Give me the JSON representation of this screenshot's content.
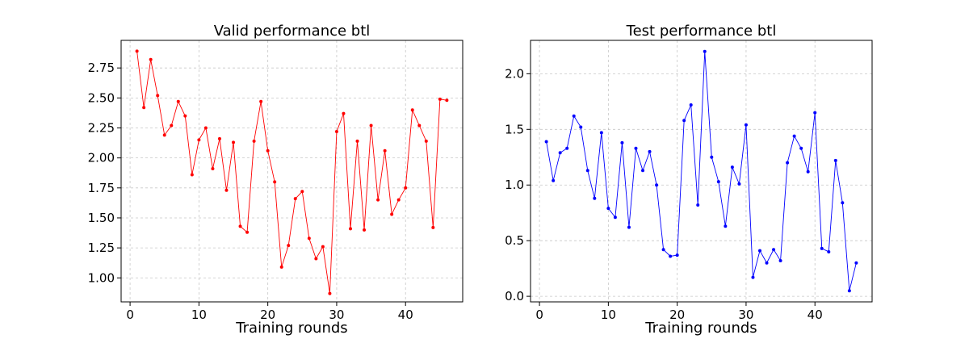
{
  "chart_data": [
    {
      "type": "line",
      "title": "Valid performance btl",
      "xlabel": "Training rounds",
      "ylabel": "",
      "color": "#ff0000",
      "grid": true,
      "xlim": [
        -1.3,
        48.3
      ],
      "ylim": [
        0.8,
        2.98
      ],
      "xticks": [
        0,
        10,
        20,
        30,
        40
      ],
      "yticks": [
        1.0,
        1.25,
        1.5,
        1.75,
        2.0,
        2.25,
        2.5,
        2.75
      ],
      "ytick_labels": [
        "1.00",
        "1.25",
        "1.50",
        "1.75",
        "2.00",
        "2.25",
        "2.50",
        "2.75"
      ],
      "x": [
        1,
        2,
        3,
        4,
        5,
        6,
        7,
        8,
        9,
        10,
        11,
        12,
        13,
        14,
        15,
        16,
        17,
        18,
        19,
        20,
        21,
        22,
        23,
        24,
        25,
        26,
        27,
        28,
        29,
        30,
        31,
        32,
        33,
        34,
        35,
        36,
        37,
        38,
        39,
        40,
        41,
        42,
        43,
        44,
        45,
        46
      ],
      "y": [
        2.89,
        2.42,
        2.82,
        2.52,
        2.19,
        2.27,
        2.47,
        2.35,
        1.86,
        2.15,
        2.25,
        1.91,
        2.16,
        1.73,
        2.13,
        1.43,
        1.38,
        2.14,
        2.47,
        2.06,
        1.8,
        1.09,
        1.27,
        1.66,
        1.72,
        1.33,
        1.16,
        1.26,
        0.87,
        2.22,
        2.37,
        1.41,
        2.14,
        1.4,
        2.27,
        1.65,
        2.06,
        1.53,
        1.65,
        1.75,
        2.4,
        2.27,
        2.14,
        1.42,
        2.49,
        2.48
      ]
    },
    {
      "type": "line",
      "title": "Test performance btl",
      "xlabel": "Training rounds",
      "ylabel": "",
      "color": "#0000ff",
      "grid": true,
      "xlim": [
        -1.3,
        48.3
      ],
      "ylim": [
        -0.05,
        2.3
      ],
      "xticks": [
        0,
        10,
        20,
        30,
        40
      ],
      "yticks": [
        0.0,
        0.5,
        1.0,
        1.5,
        2.0
      ],
      "ytick_labels": [
        "0.0",
        "0.5",
        "1.0",
        "1.5",
        "2.0"
      ],
      "x": [
        1,
        2,
        3,
        4,
        5,
        6,
        7,
        8,
        9,
        10,
        11,
        12,
        13,
        14,
        15,
        16,
        17,
        18,
        19,
        20,
        21,
        22,
        23,
        24,
        25,
        26,
        27,
        28,
        29,
        30,
        31,
        32,
        33,
        34,
        35,
        36,
        37,
        38,
        39,
        40,
        41,
        42,
        43,
        44,
        45,
        46
      ],
      "y": [
        1.39,
        1.04,
        1.29,
        1.33,
        1.62,
        1.52,
        1.13,
        0.88,
        1.47,
        0.79,
        0.71,
        1.38,
        0.62,
        1.33,
        1.13,
        1.3,
        1.0,
        0.42,
        0.36,
        0.37,
        1.58,
        1.72,
        0.82,
        2.2,
        1.25,
        1.03,
        0.63,
        1.16,
        1.01,
        1.54,
        0.17,
        0.41,
        0.3,
        0.42,
        0.32,
        1.2,
        1.44,
        1.33,
        1.12,
        1.65,
        0.43,
        0.4,
        1.22,
        0.84,
        0.05,
        0.3
      ]
    }
  ]
}
